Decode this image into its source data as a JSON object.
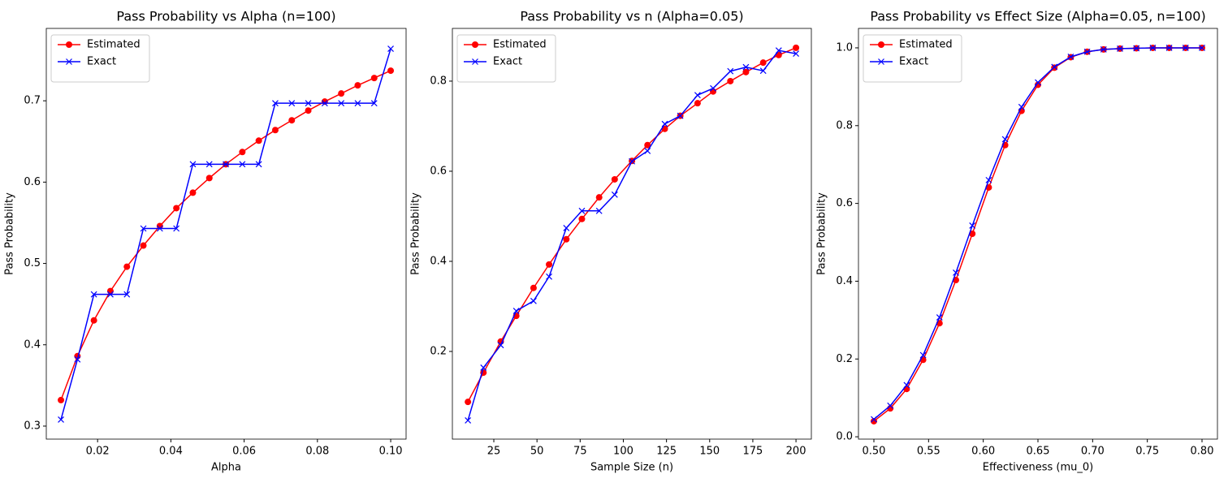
{
  "chart_data": [
    {
      "type": "line",
      "title": "Pass Probability vs Alpha (n=100)",
      "xlabel": "Alpha",
      "ylabel": "Pass Probability",
      "x": [
        0.01,
        0.0145,
        0.019,
        0.0235,
        0.028,
        0.0325,
        0.037,
        0.0415,
        0.046,
        0.0505,
        0.055,
        0.0595,
        0.064,
        0.0685,
        0.073,
        0.0775,
        0.082,
        0.0865,
        0.091,
        0.0955,
        0.1
      ],
      "series": [
        {
          "name": "Estimated",
          "color": "#ff0000",
          "marker": "o",
          "values": [
            0.332,
            0.386,
            0.43,
            0.466,
            0.496,
            0.522,
            0.546,
            0.568,
            0.587,
            0.605,
            0.622,
            0.637,
            0.651,
            0.664,
            0.676,
            0.688,
            0.699,
            0.709,
            0.719,
            0.728,
            0.737
          ]
        },
        {
          "name": "Exact",
          "color": "#0000ff",
          "marker": "x",
          "values": [
            0.308,
            0.382,
            0.462,
            0.462,
            0.462,
            0.543,
            0.543,
            0.543,
            0.622,
            0.622,
            0.622,
            0.622,
            0.622,
            0.697,
            0.697,
            0.697,
            0.697,
            0.697,
            0.697,
            0.697,
            0.764
          ]
        }
      ],
      "xlim": [
        0.006,
        0.1042
      ],
      "xticks": [
        0.02,
        0.04,
        0.06,
        0.08,
        {
          "value": 0.1,
          "label": "0.10"
        }
      ],
      "ylim": [
        0.284,
        0.789
      ],
      "yticks": [
        0.3,
        0.4,
        0.5,
        0.6,
        0.7
      ],
      "legend": "upper left"
    },
    {
      "type": "line",
      "title": "Pass Probability vs n (Alpha=0.05)",
      "xlabel": "Sample Size (n)",
      "ylabel": "Pass Probability",
      "x": [
        10,
        19,
        29,
        38,
        48,
        57,
        67,
        76,
        86,
        95,
        105,
        114,
        124,
        133,
        143,
        152,
        162,
        171,
        181,
        190,
        200
      ],
      "series": [
        {
          "name": "Estimated",
          "color": "#ff0000",
          "marker": "o",
          "values": [
            0.088,
            0.153,
            0.222,
            0.279,
            0.341,
            0.393,
            0.449,
            0.494,
            0.542,
            0.582,
            0.623,
            0.658,
            0.694,
            0.723,
            0.751,
            0.777,
            0.8,
            0.82,
            0.841,
            0.858,
            0.874
          ]
        },
        {
          "name": "Exact",
          "color": "#0000ff",
          "marker": "x",
          "values": [
            0.047,
            0.164,
            0.214,
            0.29,
            0.312,
            0.366,
            0.474,
            0.512,
            0.512,
            0.548,
            0.622,
            0.645,
            0.705,
            0.723,
            0.769,
            0.784,
            0.822,
            0.831,
            0.823,
            0.868,
            0.861
          ]
        }
      ],
      "xlim": [
        1,
        208.9
      ],
      "xticks": [
        25,
        50,
        75,
        100,
        125,
        150,
        175,
        200
      ],
      "ylim": [
        0.0054,
        0.917
      ],
      "yticks": [
        0.2,
        0.4,
        0.6,
        0.8
      ],
      "legend": "upper left"
    },
    {
      "type": "line",
      "title": "Pass Probability vs Effect Size (Alpha=0.05, n=100)",
      "xlabel": "Effectiveness (mu_0)",
      "ylabel": "Pass Probability",
      "x": [
        0.5,
        0.515,
        0.53,
        0.545,
        0.56,
        0.575,
        0.59,
        0.605,
        0.62,
        0.635,
        0.65,
        0.665,
        0.68,
        0.695,
        0.71,
        0.725,
        0.74,
        0.755,
        0.77,
        0.785,
        0.8
      ],
      "series": [
        {
          "name": "Estimated",
          "color": "#ff0000",
          "marker": "o",
          "values": [
            0.04,
            0.073,
            0.123,
            0.198,
            0.292,
            0.403,
            0.522,
            0.641,
            0.75,
            0.838,
            0.905,
            0.949,
            0.976,
            0.99,
            0.996,
            0.998,
            0.999,
            1,
            1,
            1,
            1
          ]
        },
        {
          "name": "Exact",
          "color": "#0000ff",
          "marker": "x",
          "values": [
            0.045,
            0.08,
            0.133,
            0.21,
            0.307,
            0.422,
            0.543,
            0.66,
            0.765,
            0.848,
            0.911,
            0.951,
            0.977,
            0.99,
            0.996,
            0.998,
            0.999,
            1,
            1,
            1,
            1
          ]
        }
      ],
      "xlim": [
        0.4859,
        0.8141
      ],
      "xticks": [
        {
          "value": 0.5,
          "label": "0.50"
        },
        0.55,
        {
          "value": 0.6,
          "label": "0.60"
        },
        0.65,
        {
          "value": 0.7,
          "label": "0.70"
        },
        0.75,
        {
          "value": 0.8,
          "label": "0.80"
        }
      ],
      "ylim": [
        -0.006,
        1.05
      ],
      "yticks": [
        {
          "value": 0,
          "label": "0.0"
        },
        0.2,
        0.4,
        0.6,
        0.8,
        {
          "value": 1,
          "label": "1.0"
        }
      ],
      "legend": "upper left"
    }
  ]
}
